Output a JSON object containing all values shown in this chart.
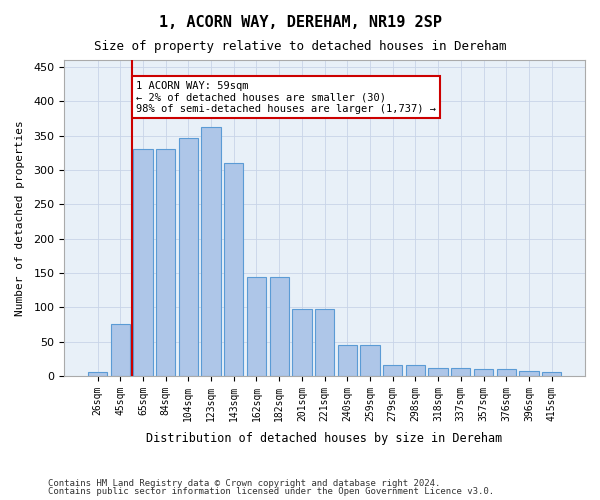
{
  "title": "1, ACORN WAY, DEREHAM, NR19 2SP",
  "subtitle": "Size of property relative to detached houses in Dereham",
  "xlabel": "Distribution of detached houses by size in Dereham",
  "ylabel": "Number of detached properties",
  "footnote1": "Contains HM Land Registry data © Crown copyright and database right 2024.",
  "footnote2": "Contains public sector information licensed under the Open Government Licence v3.0.",
  "bar_labels": [
    "26sqm",
    "45sqm",
    "65sqm",
    "84sqm",
    "104sqm",
    "123sqm",
    "143sqm",
    "162sqm",
    "182sqm",
    "201sqm",
    "221sqm",
    "240sqm",
    "259sqm",
    "279sqm",
    "298sqm",
    "318sqm",
    "337sqm",
    "357sqm",
    "376sqm",
    "396sqm",
    "415sqm"
  ],
  "bar_values": [
    6,
    75,
    330,
    330,
    347,
    363,
    310,
    144,
    144,
    97,
    97,
    45,
    45,
    16,
    16,
    12,
    12,
    10,
    10,
    7,
    5
  ],
  "bar_color": "#aec6e8",
  "bar_edge_color": "#5b9bd5",
  "grid_color": "#c8d4e8",
  "background_color": "#e8f0f8",
  "property_line_x": 1,
  "property_sqm": 59,
  "annotation_text": "1 ACORN WAY: 59sqm\n← 2% of detached houses are smaller (30)\n98% of semi-detached houses are larger (1,737) →",
  "annotation_box_color": "#ffffff",
  "annotation_border_color": "#cc0000",
  "vline_color": "#cc0000",
  "ylim": [
    0,
    460
  ],
  "yticks": [
    0,
    50,
    100,
    150,
    200,
    250,
    300,
    350,
    400,
    450
  ]
}
